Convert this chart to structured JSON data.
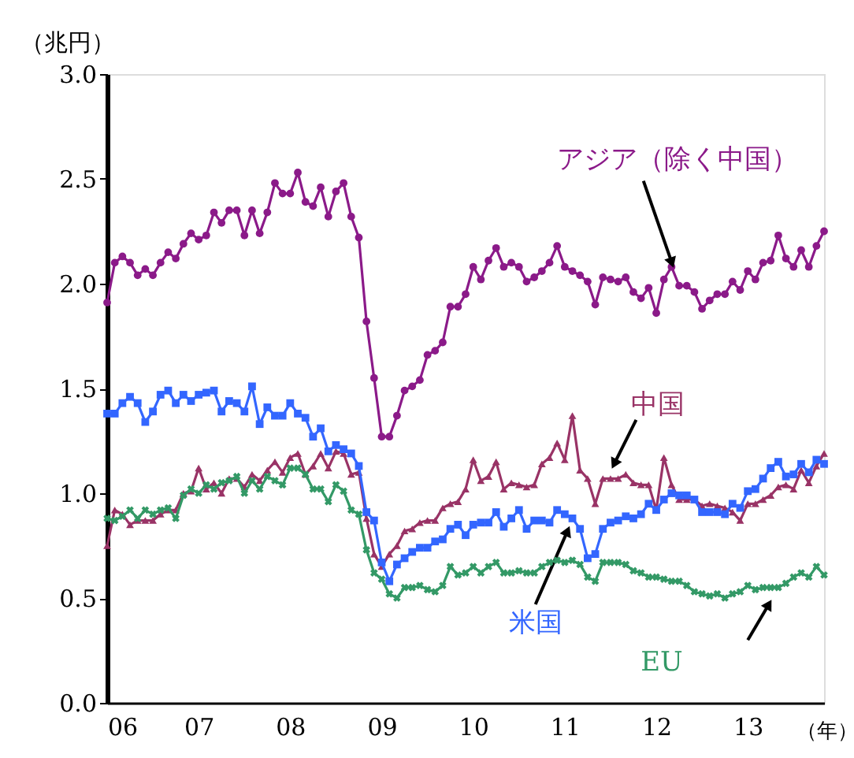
{
  "chart_data": {
    "type": "line",
    "ylabel": "（兆円）",
    "xlabel": "（年）",
    "x": [
      "2006-01",
      "2006-02",
      "2006-03",
      "2006-04",
      "2006-05",
      "2006-06",
      "2006-07",
      "2006-08",
      "2006-09",
      "2006-10",
      "2006-11",
      "2006-12",
      "2007-01",
      "2007-02",
      "2007-03",
      "2007-04",
      "2007-05",
      "2007-06",
      "2007-07",
      "2007-08",
      "2007-09",
      "2007-10",
      "2007-11",
      "2007-12",
      "2008-01",
      "2008-02",
      "2008-03",
      "2008-04",
      "2008-05",
      "2008-06",
      "2008-07",
      "2008-08",
      "2008-09",
      "2008-10",
      "2008-11",
      "2008-12",
      "2009-01",
      "2009-02",
      "2009-03",
      "2009-04",
      "2009-05",
      "2009-06",
      "2009-07",
      "2009-08",
      "2009-09",
      "2009-10",
      "2009-11",
      "2009-12",
      "2010-01",
      "2010-02",
      "2010-03",
      "2010-04",
      "2010-05",
      "2010-06",
      "2010-07",
      "2010-08",
      "2010-09",
      "2010-10",
      "2010-11",
      "2010-12",
      "2011-01",
      "2011-02",
      "2011-03",
      "2011-04",
      "2011-05",
      "2011-06",
      "2011-07",
      "2011-08",
      "2011-09",
      "2011-10",
      "2011-11",
      "2011-12",
      "2012-01",
      "2012-02",
      "2012-03",
      "2012-04",
      "2012-05",
      "2012-06",
      "2012-07",
      "2012-08",
      "2012-09",
      "2012-10",
      "2012-11",
      "2012-12",
      "2013-01",
      "2013-02",
      "2013-03",
      "2013-04",
      "2013-05",
      "2013-06",
      "2013-07",
      "2013-08",
      "2013-09",
      "2013-10",
      "2013-11"
    ],
    "series": [
      {
        "name": "アジア（除く中国）",
        "color": "#8b1a89",
        "marker": "circle",
        "values": [
          1.91,
          2.1,
          2.13,
          2.1,
          2.04,
          2.07,
          2.04,
          2.1,
          2.15,
          2.12,
          2.19,
          2.24,
          2.21,
          2.23,
          2.34,
          2.29,
          2.35,
          2.35,
          2.23,
          2.35,
          2.24,
          2.34,
          2.48,
          2.43,
          2.43,
          2.53,
          2.39,
          2.37,
          2.46,
          2.32,
          2.44,
          2.48,
          2.32,
          2.22,
          1.82,
          1.55,
          1.27,
          1.27,
          1.37,
          1.49,
          1.51,
          1.54,
          1.66,
          1.68,
          1.72,
          1.89,
          1.89,
          1.95,
          2.08,
          2.02,
          2.11,
          2.17,
          2.08,
          2.1,
          2.08,
          2.01,
          2.03,
          2.06,
          2.1,
          2.18,
          2.08,
          2.06,
          2.04,
          2.01,
          1.9,
          2.03,
          2.02,
          2.01,
          2.03,
          1.96,
          1.93,
          1.98,
          1.86,
          2.02,
          2.08,
          1.99,
          1.99,
          1.96,
          1.88,
          1.92,
          1.95,
          1.95,
          2.01,
          1.97,
          2.06,
          2.02,
          2.1,
          2.11,
          2.23,
          2.12,
          2.08,
          2.16,
          2.08,
          2.18,
          2.25
        ]
      },
      {
        "name": "中国",
        "color": "#993366",
        "marker": "triangle",
        "values": [
          0.75,
          0.92,
          0.9,
          0.85,
          0.87,
          0.87,
          0.87,
          0.9,
          0.92,
          0.92,
          1.0,
          1.01,
          1.12,
          1.02,
          1.05,
          1.0,
          1.07,
          1.07,
          1.03,
          1.09,
          1.06,
          1.11,
          1.15,
          1.1,
          1.17,
          1.19,
          1.09,
          1.13,
          1.19,
          1.12,
          1.2,
          1.19,
          1.09,
          1.1,
          0.88,
          0.71,
          0.65,
          0.71,
          0.75,
          0.82,
          0.83,
          0.86,
          0.87,
          0.87,
          0.93,
          0.95,
          0.96,
          1.02,
          1.16,
          1.06,
          1.08,
          1.15,
          1.02,
          1.05,
          1.04,
          1.03,
          1.04,
          1.14,
          1.17,
          1.24,
          1.16,
          1.37,
          1.11,
          1.07,
          0.95,
          1.07,
          1.07,
          1.07,
          1.09,
          1.05,
          1.04,
          1.04,
          0.92,
          1.17,
          1.04,
          0.97,
          0.97,
          0.97,
          0.94,
          0.95,
          0.94,
          0.93,
          0.91,
          0.87,
          0.95,
          0.95,
          0.97,
          0.99,
          1.03,
          1.04,
          1.02,
          1.11,
          1.05,
          1.13,
          1.19
        ]
      },
      {
        "name": "米国",
        "color": "#3366ff",
        "marker": "square",
        "values": [
          1.38,
          1.38,
          1.43,
          1.46,
          1.43,
          1.34,
          1.39,
          1.47,
          1.49,
          1.43,
          1.47,
          1.44,
          1.47,
          1.48,
          1.49,
          1.39,
          1.44,
          1.43,
          1.39,
          1.51,
          1.33,
          1.41,
          1.37,
          1.37,
          1.43,
          1.38,
          1.36,
          1.27,
          1.31,
          1.2,
          1.23,
          1.21,
          1.19,
          1.13,
          0.91,
          0.87,
          0.67,
          0.58,
          0.66,
          0.69,
          0.72,
          0.74,
          0.74,
          0.77,
          0.78,
          0.83,
          0.85,
          0.8,
          0.85,
          0.86,
          0.86,
          0.91,
          0.84,
          0.88,
          0.92,
          0.83,
          0.87,
          0.87,
          0.86,
          0.92,
          0.9,
          0.88,
          0.83,
          0.69,
          0.71,
          0.83,
          0.86,
          0.87,
          0.89,
          0.88,
          0.9,
          0.95,
          0.92,
          0.97,
          1.0,
          0.99,
          0.99,
          0.97,
          0.91,
          0.91,
          0.91,
          0.9,
          0.95,
          0.93,
          1.01,
          1.02,
          1.07,
          1.12,
          1.15,
          1.08,
          1.09,
          1.14,
          1.1,
          1.16,
          1.14
        ]
      },
      {
        "name": "EU",
        "color": "#339966",
        "marker": "cross",
        "values": [
          0.88,
          0.87,
          0.89,
          0.92,
          0.88,
          0.92,
          0.9,
          0.92,
          0.93,
          0.88,
          0.99,
          1.02,
          1.0,
          1.04,
          1.02,
          1.05,
          1.06,
          1.08,
          1.0,
          1.06,
          1.02,
          1.08,
          1.06,
          1.04,
          1.12,
          1.12,
          1.09,
          1.02,
          1.02,
          0.96,
          1.04,
          1.01,
          0.92,
          0.9,
          0.73,
          0.62,
          0.59,
          0.52,
          0.5,
          0.55,
          0.55,
          0.56,
          0.54,
          0.53,
          0.56,
          0.65,
          0.61,
          0.62,
          0.65,
          0.62,
          0.65,
          0.67,
          0.62,
          0.62,
          0.63,
          0.62,
          0.62,
          0.65,
          0.67,
          0.68,
          0.67,
          0.68,
          0.66,
          0.6,
          0.58,
          0.67,
          0.67,
          0.67,
          0.66,
          0.63,
          0.62,
          0.6,
          0.6,
          0.59,
          0.58,
          0.58,
          0.56,
          0.53,
          0.52,
          0.51,
          0.52,
          0.5,
          0.52,
          0.53,
          0.56,
          0.54,
          0.55,
          0.55,
          0.55,
          0.57,
          0.6,
          0.62,
          0.6,
          0.65,
          0.61
        ]
      }
    ],
    "xlim": [
      "2006-01",
      "2013-11"
    ],
    "xticks": [
      {
        "value": "2006",
        "label": "06"
      },
      {
        "value": "2007",
        "label": "07"
      },
      {
        "value": "2008",
        "label": "08"
      },
      {
        "value": "2009",
        "label": "09"
      },
      {
        "value": "2010",
        "label": "10"
      },
      {
        "value": "2011",
        "label": "11"
      },
      {
        "value": "2012",
        "label": "12"
      },
      {
        "value": "2013",
        "label": "13"
      }
    ],
    "ylim": [
      0,
      3.0
    ],
    "yticks": [
      {
        "value": 0,
        "label": "0.0"
      },
      {
        "value": 0.5,
        "label": "0.5"
      },
      {
        "value": 1.0,
        "label": "1.0"
      },
      {
        "value": 1.5,
        "label": "1.5"
      },
      {
        "value": 2.0,
        "label": "2.0"
      },
      {
        "value": 2.5,
        "label": "2.5"
      },
      {
        "value": 3.0,
        "label": "3.0"
      }
    ],
    "grid": false
  }
}
